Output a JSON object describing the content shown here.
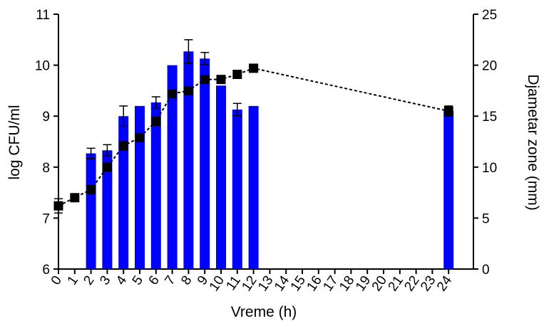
{
  "chart_data": {
    "type": "bar+line",
    "xlabel": "Vreme (h)",
    "ylabel_left": "log CFU/ml",
    "ylabel_right": "Djametar zone (mm)",
    "x_ticks": [
      "0",
      "1",
      "2",
      "3",
      "4",
      "5",
      "6",
      "7",
      "8",
      "9",
      "10",
      "11",
      "12",
      "13",
      "14",
      "15",
      "16",
      "17",
      "18",
      "19",
      "20",
      "21",
      "22",
      "23",
      "24"
    ],
    "y_left_ticks": [
      "6",
      "7",
      "8",
      "9",
      "10",
      "11"
    ],
    "y_right_ticks": [
      "0",
      "5",
      "10",
      "15",
      "20",
      "25"
    ],
    "ylim_left": [
      6,
      11
    ],
    "ylim_right": [
      0,
      25
    ],
    "bars": {
      "axis": "left",
      "color": "#0000ff",
      "points": [
        {
          "x": 2,
          "y": 8.27,
          "err": 0.1
        },
        {
          "x": 3,
          "y": 8.33,
          "err": 0.11
        },
        {
          "x": 4,
          "y": 9.0,
          "err": 0.2
        },
        {
          "x": 5,
          "y": 9.2,
          "err": 0
        },
        {
          "x": 6,
          "y": 9.27,
          "err": 0.11
        },
        {
          "x": 7,
          "y": 10.0,
          "err": 0
        },
        {
          "x": 8,
          "y": 10.27,
          "err": 0.23
        },
        {
          "x": 9,
          "y": 10.13,
          "err": 0.12
        },
        {
          "x": 10,
          "y": 9.6,
          "err": 0
        },
        {
          "x": 11,
          "y": 9.13,
          "err": 0.12
        },
        {
          "x": 12,
          "y": 9.2,
          "err": 0
        },
        {
          "x": 24,
          "y": 9.1,
          "err": 0.1
        }
      ]
    },
    "line": {
      "axis": "right",
      "color": "#000000",
      "style": "dotted",
      "marker": "square",
      "points": [
        {
          "x": 0,
          "y": 6.2,
          "err": 0.7
        },
        {
          "x": 1,
          "y": 7.0
        },
        {
          "x": 2,
          "y": 7.8
        },
        {
          "x": 3,
          "y": 10.0
        },
        {
          "x": 4,
          "y": 12.1
        },
        {
          "x": 5,
          "y": 12.9
        },
        {
          "x": 6,
          "y": 14.5
        },
        {
          "x": 7,
          "y": 17.2
        },
        {
          "x": 8,
          "y": 17.5
        },
        {
          "x": 9,
          "y": 18.6
        },
        {
          "x": 10,
          "y": 18.6
        },
        {
          "x": 11,
          "y": 19.1
        },
        {
          "x": 12,
          "y": 19.7
        },
        {
          "x": 24,
          "y": 15.5
        }
      ]
    }
  }
}
